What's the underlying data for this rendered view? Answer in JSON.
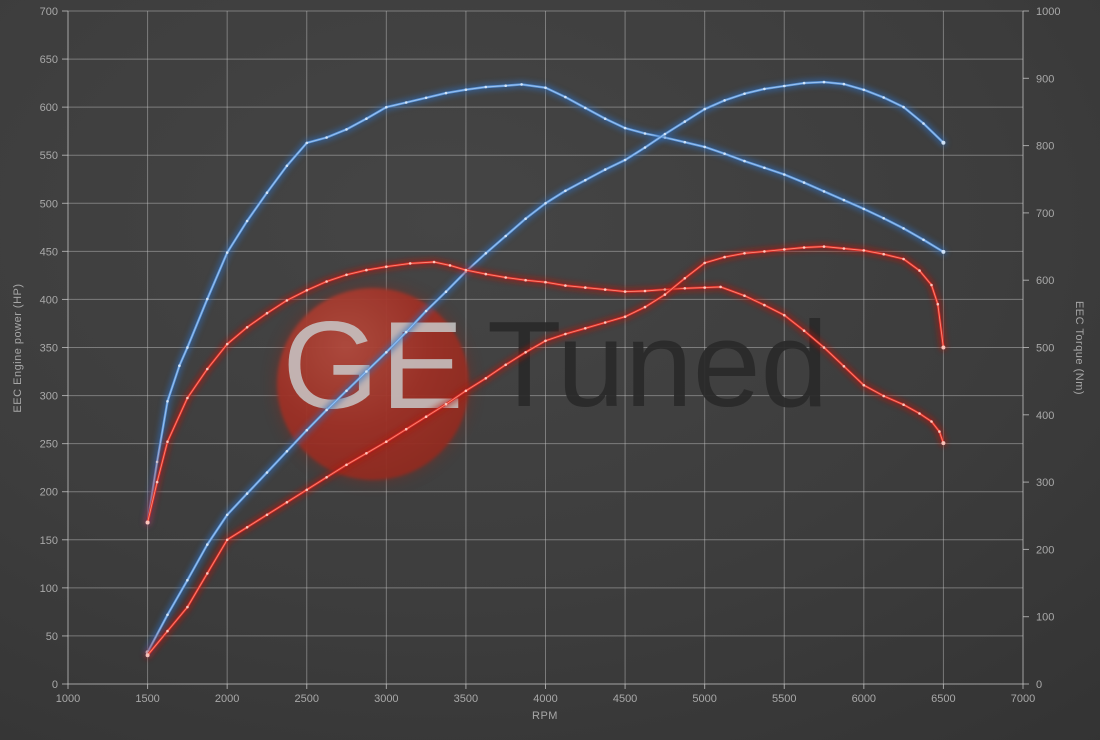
{
  "watermark": {
    "circle_text": "GE",
    "rest_text": "Tuned"
  },
  "chart_data": {
    "type": "line",
    "title": "",
    "xlabel": "RPM",
    "ylabel_left": "EEC Engine power (HP)",
    "ylabel_right": "EEC Torque (Nm)",
    "x_range": [
      1000,
      7000
    ],
    "x_step": 500,
    "y_left_range": [
      0,
      700
    ],
    "y_left_step": 50,
    "y_right_range": [
      0,
      1000
    ],
    "y_right_step": 100,
    "grid": true,
    "legend": "none",
    "x_ticks": [
      "1000",
      "1500",
      "2000",
      "2500",
      "3000",
      "3500",
      "4000",
      "4500",
      "5000",
      "5500",
      "6000",
      "6500",
      "7000"
    ],
    "y_left_ticks": [
      "0",
      "50",
      "100",
      "150",
      "200",
      "250",
      "300",
      "350",
      "400",
      "450",
      "500",
      "550",
      "600",
      "650",
      "700"
    ],
    "y_right_ticks": [
      "0",
      "100",
      "200",
      "300",
      "400",
      "500",
      "600",
      "700",
      "800",
      "900",
      "1000"
    ],
    "colors": {
      "blue_core": "#5c97dd",
      "blue_bright": "#aacdf2",
      "blue_glow": "#2d6cb8",
      "blue_marker": "#d9e9fa",
      "red_core": "#dd2b24",
      "red_bright": "#ff9884",
      "red_glow": "#b01208",
      "red_marker": "#ffcfc5",
      "grid_line": "rgba(200,200,200,0.45)",
      "axis_line": "rgba(200,200,200,0.75)",
      "tick_label": "#a9a9a9"
    },
    "series": [
      {
        "name": "blue-torque",
        "axis": "right",
        "color_role": "blue",
        "points": [
          [
            1500,
            240
          ],
          [
            1560,
            330
          ],
          [
            1625,
            420
          ],
          [
            1700,
            473
          ],
          [
            1750,
            500
          ],
          [
            1875,
            572
          ],
          [
            2000,
            641
          ],
          [
            2125,
            688
          ],
          [
            2250,
            730
          ],
          [
            2375,
            770
          ],
          [
            2500,
            804
          ],
          [
            2625,
            812
          ],
          [
            2750,
            824
          ],
          [
            2875,
            840
          ],
          [
            3000,
            857
          ],
          [
            3125,
            864
          ],
          [
            3250,
            871
          ],
          [
            3375,
            878
          ],
          [
            3500,
            883
          ],
          [
            3625,
            887
          ],
          [
            3750,
            889
          ],
          [
            3850,
            891
          ],
          [
            4000,
            886
          ],
          [
            4125,
            872
          ],
          [
            4250,
            856
          ],
          [
            4375,
            840
          ],
          [
            4500,
            826
          ],
          [
            4625,
            818
          ],
          [
            4750,
            812
          ],
          [
            4875,
            805
          ],
          [
            5000,
            798
          ],
          [
            5125,
            788
          ],
          [
            5250,
            777
          ],
          [
            5375,
            767
          ],
          [
            5500,
            757
          ],
          [
            5625,
            745
          ],
          [
            5750,
            732
          ],
          [
            5875,
            719
          ],
          [
            6000,
            706
          ],
          [
            6125,
            692
          ],
          [
            6250,
            677
          ],
          [
            6375,
            660
          ],
          [
            6500,
            642
          ]
        ]
      },
      {
        "name": "blue-power",
        "axis": "left",
        "color_role": "blue",
        "points": [
          [
            1500,
            33
          ],
          [
            1625,
            72
          ],
          [
            1750,
            108
          ],
          [
            1875,
            145
          ],
          [
            2000,
            176
          ],
          [
            2125,
            198
          ],
          [
            2250,
            220
          ],
          [
            2375,
            242
          ],
          [
            2500,
            264
          ],
          [
            2625,
            285
          ],
          [
            2750,
            305
          ],
          [
            2875,
            325
          ],
          [
            3000,
            345
          ],
          [
            3125,
            366
          ],
          [
            3250,
            388
          ],
          [
            3375,
            408
          ],
          [
            3500,
            429
          ],
          [
            3625,
            448
          ],
          [
            3750,
            466
          ],
          [
            3875,
            484
          ],
          [
            4000,
            500
          ],
          [
            4125,
            513
          ],
          [
            4250,
            524
          ],
          [
            4375,
            535
          ],
          [
            4500,
            545
          ],
          [
            4625,
            558
          ],
          [
            4750,
            572
          ],
          [
            4875,
            585
          ],
          [
            5000,
            598
          ],
          [
            5125,
            607
          ],
          [
            5250,
            614
          ],
          [
            5375,
            619
          ],
          [
            5500,
            622
          ],
          [
            5625,
            625
          ],
          [
            5750,
            626
          ],
          [
            5875,
            624
          ],
          [
            6000,
            618
          ],
          [
            6125,
            610
          ],
          [
            6250,
            600
          ],
          [
            6375,
            583
          ],
          [
            6500,
            563
          ]
        ]
      },
      {
        "name": "red-torque",
        "axis": "right",
        "color_role": "red",
        "points": [
          [
            1500,
            240
          ],
          [
            1560,
            300
          ],
          [
            1625,
            360
          ],
          [
            1750,
            425
          ],
          [
            1875,
            468
          ],
          [
            2000,
            505
          ],
          [
            2125,
            530
          ],
          [
            2250,
            551
          ],
          [
            2375,
            570
          ],
          [
            2500,
            585
          ],
          [
            2625,
            598
          ],
          [
            2750,
            608
          ],
          [
            2875,
            615
          ],
          [
            3000,
            620
          ],
          [
            3150,
            625
          ],
          [
            3300,
            627
          ],
          [
            3400,
            622
          ],
          [
            3500,
            615
          ],
          [
            3625,
            609
          ],
          [
            3750,
            604
          ],
          [
            3875,
            600
          ],
          [
            4000,
            597
          ],
          [
            4125,
            592
          ],
          [
            4250,
            589
          ],
          [
            4375,
            586
          ],
          [
            4500,
            583
          ],
          [
            4625,
            584
          ],
          [
            4750,
            586
          ],
          [
            4875,
            588
          ],
          [
            5000,
            589
          ],
          [
            5100,
            590
          ],
          [
            5250,
            577
          ],
          [
            5375,
            563
          ],
          [
            5500,
            548
          ],
          [
            5625,
            525
          ],
          [
            5750,
            500
          ],
          [
            5875,
            472
          ],
          [
            6000,
            444
          ],
          [
            6125,
            428
          ],
          [
            6250,
            415
          ],
          [
            6350,
            402
          ],
          [
            6425,
            390
          ],
          [
            6475,
            375
          ],
          [
            6500,
            358
          ]
        ]
      },
      {
        "name": "red-power",
        "axis": "left",
        "color_role": "red",
        "points": [
          [
            1500,
            30
          ],
          [
            1625,
            55
          ],
          [
            1750,
            80
          ],
          [
            1875,
            115
          ],
          [
            2000,
            150
          ],
          [
            2125,
            163
          ],
          [
            2250,
            176
          ],
          [
            2375,
            189
          ],
          [
            2500,
            202
          ],
          [
            2625,
            215
          ],
          [
            2750,
            228
          ],
          [
            2875,
            240
          ],
          [
            3000,
            252
          ],
          [
            3125,
            265
          ],
          [
            3250,
            278
          ],
          [
            3375,
            291
          ],
          [
            3500,
            305
          ],
          [
            3625,
            318
          ],
          [
            3750,
            332
          ],
          [
            3875,
            345
          ],
          [
            4000,
            357
          ],
          [
            4125,
            364
          ],
          [
            4250,
            370
          ],
          [
            4375,
            376
          ],
          [
            4500,
            382
          ],
          [
            4625,
            392
          ],
          [
            4750,
            405
          ],
          [
            4875,
            422
          ],
          [
            5000,
            438
          ],
          [
            5125,
            444
          ],
          [
            5250,
            448
          ],
          [
            5375,
            450
          ],
          [
            5500,
            452
          ],
          [
            5625,
            454
          ],
          [
            5750,
            455
          ],
          [
            5875,
            453
          ],
          [
            6000,
            451
          ],
          [
            6125,
            447
          ],
          [
            6250,
            442
          ],
          [
            6350,
            430
          ],
          [
            6425,
            415
          ],
          [
            6465,
            395
          ],
          [
            6500,
            350
          ]
        ]
      }
    ]
  }
}
